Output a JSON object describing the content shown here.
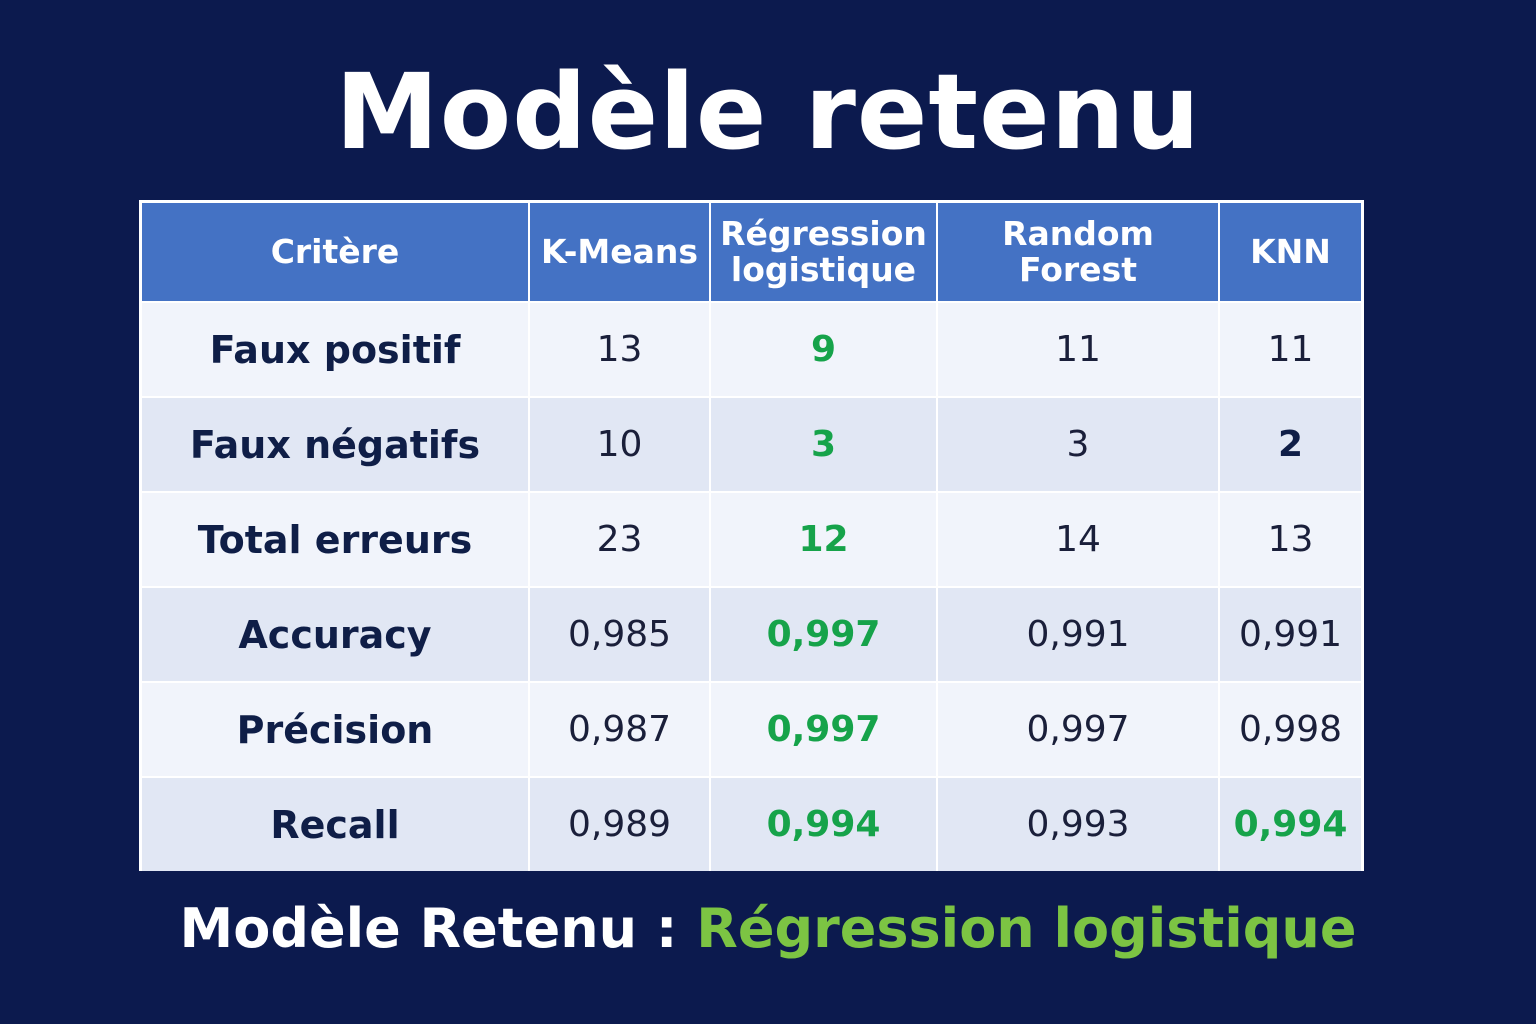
{
  "title": "Modèle retenu",
  "colors": {
    "background": "#0c1a4e",
    "header": "#4472c4",
    "best_value": "#16a34a",
    "footer_accent": "#7cc443"
  },
  "table": {
    "headers": [
      "Critère",
      "K-Means",
      "Régression logistique",
      "Random Forest",
      "KNN"
    ],
    "rows": [
      {
        "label": "Faux positif",
        "values": [
          "13",
          "9",
          "11",
          "11"
        ]
      },
      {
        "label": "Faux négatifs",
        "values": [
          "10",
          "3",
          "3",
          "2"
        ]
      },
      {
        "label": "Total erreurs",
        "values": [
          "23",
          "12",
          "14",
          "13"
        ]
      },
      {
        "label": "Accuracy",
        "values": [
          "0,985",
          "0,997",
          "0,991",
          "0,991"
        ]
      },
      {
        "label": "Précision",
        "values": [
          "0,987",
          "0,997",
          "0,997",
          "0,998"
        ]
      },
      {
        "label": "Recall",
        "values": [
          "0,989",
          "0,994",
          "0,993",
          "0,994"
        ]
      }
    ]
  },
  "footer": {
    "prefix": "Modèle Retenu : ",
    "model": "Régression logistique"
  }
}
